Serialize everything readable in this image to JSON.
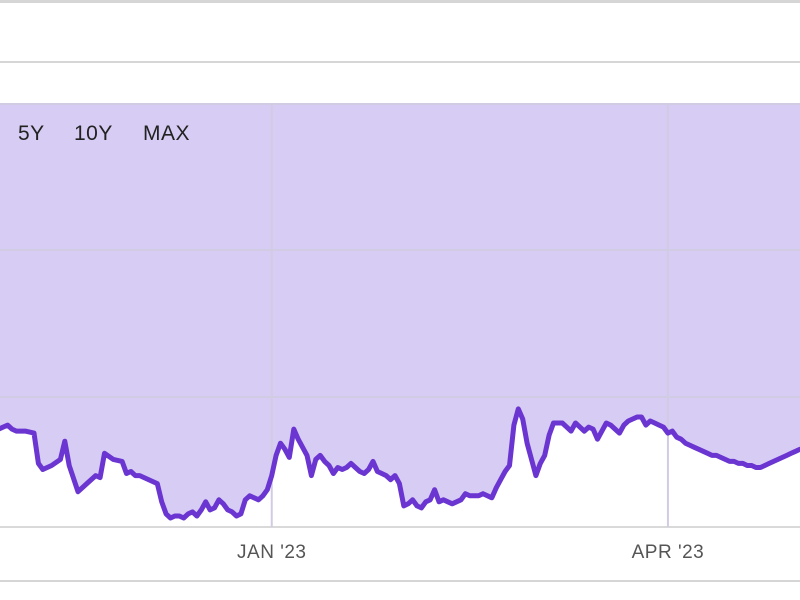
{
  "range_tabs": [
    {
      "label": "5Y"
    },
    {
      "label": "10Y"
    },
    {
      "label": "MAX"
    }
  ],
  "colors": {
    "line": "#6a35d0",
    "fill": "#d7ccf3",
    "grid": "#d2cbe4",
    "rule": "#d6d6d6"
  },
  "chart_data": {
    "type": "area",
    "title": "",
    "xlabel": "",
    "ylabel": "",
    "x_ticks": [
      {
        "label": "JAN '23",
        "day": 84
      },
      {
        "label": "APR '23",
        "day": 174
      }
    ],
    "ylim": [
      0,
      100
    ],
    "xlim": [
      20,
      204
    ],
    "grid": true,
    "series": [
      {
        "values": [
          [
            20,
            44
          ],
          [
            22,
            45
          ],
          [
            24,
            47
          ],
          [
            25,
            45
          ],
          [
            26,
            44
          ],
          [
            28,
            44
          ],
          [
            30,
            43
          ],
          [
            31,
            28
          ],
          [
            32,
            25
          ],
          [
            34,
            27
          ],
          [
            36,
            30
          ],
          [
            37,
            39
          ],
          [
            38,
            27
          ],
          [
            40,
            14
          ],
          [
            42,
            18
          ],
          [
            44,
            22
          ],
          [
            45,
            21
          ],
          [
            46,
            33
          ],
          [
            48,
            30
          ],
          [
            50,
            29
          ],
          [
            51,
            23
          ],
          [
            52,
            24
          ],
          [
            53,
            22
          ],
          [
            54,
            22
          ],
          [
            56,
            20
          ],
          [
            57,
            19
          ],
          [
            58,
            18
          ],
          [
            59,
            9
          ],
          [
            60,
            3
          ],
          [
            61,
            1
          ],
          [
            62,
            2
          ],
          [
            63,
            2
          ],
          [
            64,
            1
          ],
          [
            65,
            3
          ],
          [
            66,
            4
          ],
          [
            67,
            2
          ],
          [
            68,
            5
          ],
          [
            69,
            9
          ],
          [
            70,
            5
          ],
          [
            71,
            6
          ],
          [
            72,
            10
          ],
          [
            73,
            8
          ],
          [
            74,
            5
          ],
          [
            75,
            4
          ],
          [
            76,
            2
          ],
          [
            77,
            3
          ],
          [
            78,
            10
          ],
          [
            79,
            12
          ],
          [
            80,
            11
          ],
          [
            81,
            10
          ],
          [
            82,
            12
          ],
          [
            83,
            15
          ],
          [
            84,
            22
          ],
          [
            85,
            32
          ],
          [
            86,
            38
          ],
          [
            87,
            35
          ],
          [
            88,
            31
          ],
          [
            89,
            45
          ],
          [
            90,
            40
          ],
          [
            91,
            36
          ],
          [
            92,
            32
          ],
          [
            93,
            22
          ],
          [
            94,
            30
          ],
          [
            95,
            32
          ],
          [
            96,
            29
          ],
          [
            97,
            27
          ],
          [
            98,
            23
          ],
          [
            99,
            26
          ],
          [
            100,
            25
          ],
          [
            101,
            26
          ],
          [
            102,
            28
          ],
          [
            103,
            26
          ],
          [
            104,
            24
          ],
          [
            105,
            23
          ],
          [
            106,
            25
          ],
          [
            107,
            29
          ],
          [
            108,
            24
          ],
          [
            109,
            23
          ],
          [
            110,
            22
          ],
          [
            111,
            20
          ],
          [
            112,
            22
          ],
          [
            113,
            18
          ],
          [
            114,
            7
          ],
          [
            115,
            8
          ],
          [
            116,
            10
          ],
          [
            117,
            7
          ],
          [
            118,
            6
          ],
          [
            119,
            9
          ],
          [
            120,
            10
          ],
          [
            121,
            15
          ],
          [
            122,
            9
          ],
          [
            123,
            10
          ],
          [
            124,
            9
          ],
          [
            125,
            8
          ],
          [
            126,
            9
          ],
          [
            127,
            10
          ],
          [
            128,
            13
          ],
          [
            129,
            12
          ],
          [
            130,
            12
          ],
          [
            131,
            12
          ],
          [
            132,
            13
          ],
          [
            133,
            12
          ],
          [
            134,
            11
          ],
          [
            135,
            16
          ],
          [
            136,
            20
          ],
          [
            137,
            24
          ],
          [
            138,
            27
          ],
          [
            139,
            47
          ],
          [
            140,
            55
          ],
          [
            141,
            50
          ],
          [
            142,
            38
          ],
          [
            143,
            30
          ],
          [
            144,
            22
          ],
          [
            145,
            28
          ],
          [
            146,
            32
          ],
          [
            147,
            42
          ],
          [
            148,
            48
          ],
          [
            149,
            48
          ],
          [
            150,
            48
          ],
          [
            151,
            46
          ],
          [
            152,
            44
          ],
          [
            153,
            48
          ],
          [
            154,
            46
          ],
          [
            155,
            44
          ],
          [
            156,
            46
          ],
          [
            157,
            45
          ],
          [
            158,
            40
          ],
          [
            159,
            44
          ],
          [
            160,
            48
          ],
          [
            161,
            47
          ],
          [
            162,
            45
          ],
          [
            163,
            43
          ],
          [
            164,
            47
          ],
          [
            165,
            49
          ],
          [
            166,
            50
          ],
          [
            167,
            51
          ],
          [
            168,
            51
          ],
          [
            169,
            47
          ],
          [
            170,
            49
          ],
          [
            171,
            48
          ],
          [
            172,
            47
          ],
          [
            173,
            46
          ],
          [
            174,
            43
          ],
          [
            175,
            44
          ],
          [
            176,
            41
          ],
          [
            177,
            40
          ],
          [
            178,
            38
          ],
          [
            179,
            37
          ],
          [
            180,
            36
          ],
          [
            181,
            35
          ],
          [
            182,
            34
          ],
          [
            183,
            33
          ],
          [
            184,
            32
          ],
          [
            185,
            32
          ],
          [
            186,
            31
          ],
          [
            187,
            30
          ],
          [
            188,
            29
          ],
          [
            189,
            29
          ],
          [
            190,
            28
          ],
          [
            191,
            28
          ],
          [
            192,
            27
          ],
          [
            193,
            27
          ],
          [
            194,
            26
          ],
          [
            195,
            26
          ],
          [
            196,
            27
          ],
          [
            197,
            28
          ],
          [
            198,
            29
          ],
          [
            199,
            30
          ],
          [
            200,
            31
          ],
          [
            201,
            32
          ],
          [
            202,
            33
          ],
          [
            203,
            34
          ],
          [
            204,
            35
          ]
        ]
      }
    ]
  }
}
